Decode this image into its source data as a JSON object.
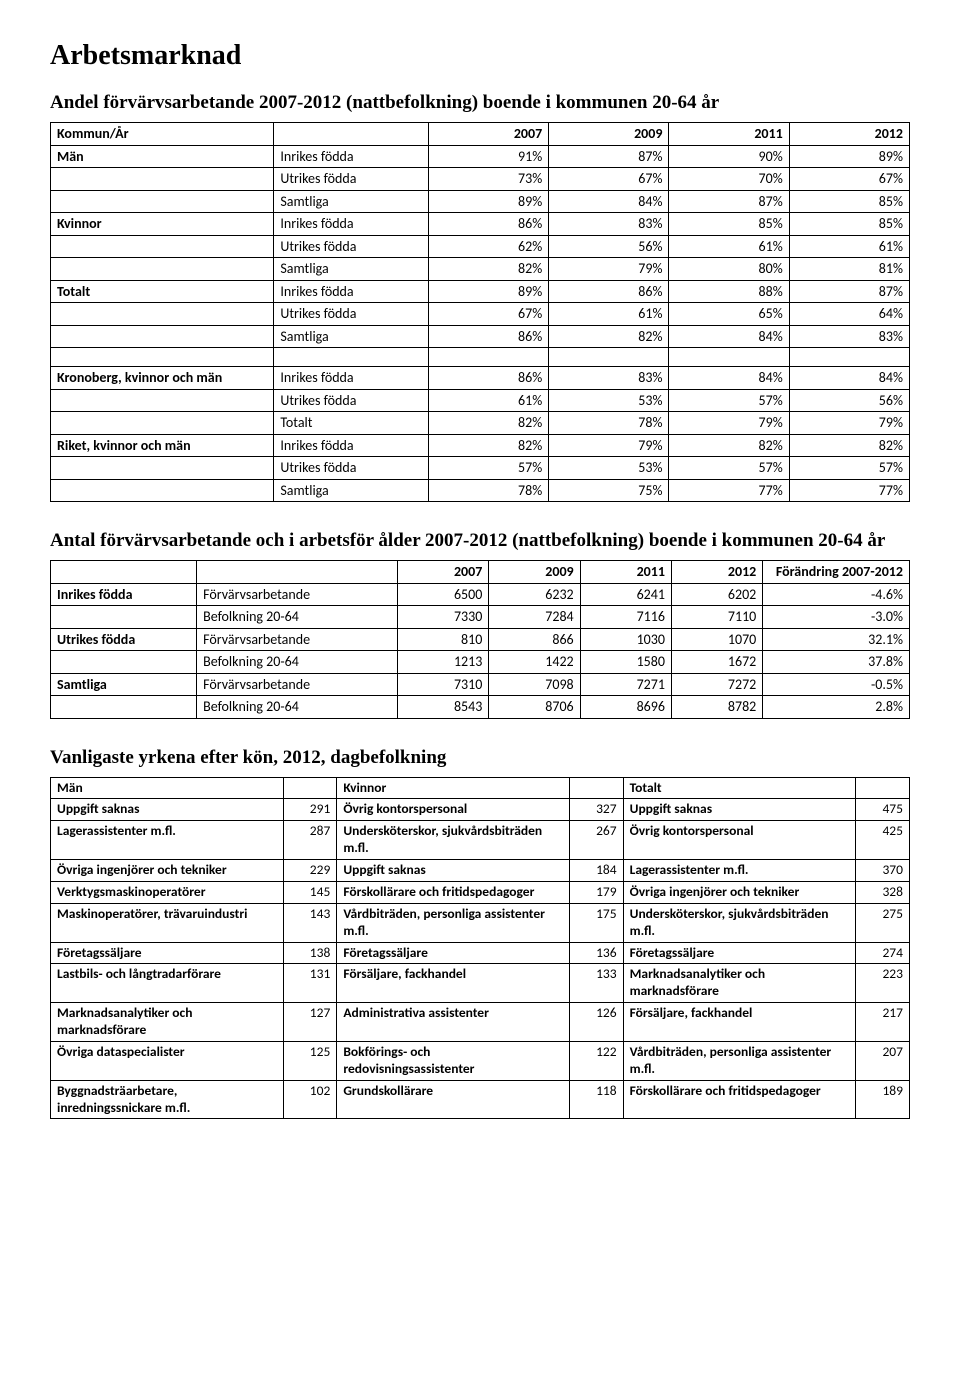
{
  "page": {
    "title": "Arbetsmarknad",
    "h2_table1": "Andel förvärvsarbetande 2007-2012 (nattbefolkning) boende i kommunen 20-64 år",
    "h2_table2": "Antal förvärvsarbetande och i arbetsför ålder 2007-2012 (nattbefolkning) boende i kommunen 20-64 år",
    "h2_table3": "Vanligaste yrkena efter kön, 2012, dagbefolkning"
  },
  "t1": {
    "header": [
      "Kommun/År",
      "",
      "2007",
      "2009",
      "2011",
      "2012"
    ],
    "groups": [
      {
        "label": "Män",
        "rows": [
          {
            "k": "Inrikes födda",
            "v": [
              "91%",
              "87%",
              "90%",
              "89%"
            ]
          },
          {
            "k": "Utrikes födda",
            "v": [
              "73%",
              "67%",
              "70%",
              "67%"
            ]
          },
          {
            "k": "Samtliga",
            "v": [
              "89%",
              "84%",
              "87%",
              "85%"
            ]
          }
        ]
      },
      {
        "label": "Kvinnor",
        "rows": [
          {
            "k": "Inrikes födda",
            "v": [
              "86%",
              "83%",
              "85%",
              "85%"
            ]
          },
          {
            "k": "Utrikes födda",
            "v": [
              "62%",
              "56%",
              "61%",
              "61%"
            ]
          },
          {
            "k": "Samtliga",
            "v": [
              "82%",
              "79%",
              "80%",
              "81%"
            ]
          }
        ]
      },
      {
        "label": "Totalt",
        "rows": [
          {
            "k": "Inrikes födda",
            "v": [
              "89%",
              "86%",
              "88%",
              "87%"
            ]
          },
          {
            "k": "Utrikes födda",
            "v": [
              "67%",
              "61%",
              "65%",
              "64%"
            ]
          },
          {
            "k": "Samtliga",
            "v": [
              "86%",
              "82%",
              "84%",
              "83%"
            ]
          }
        ]
      }
    ],
    "extra": [
      {
        "label": "Kronoberg, kvinnor och män",
        "rows": [
          {
            "k": "Inrikes födda",
            "v": [
              "86%",
              "83%",
              "84%",
              "84%"
            ]
          },
          {
            "k": "Utrikes födda",
            "v": [
              "61%",
              "53%",
              "57%",
              "56%"
            ]
          },
          {
            "k": "Totalt",
            "v": [
              "82%",
              "78%",
              "79%",
              "79%"
            ]
          }
        ]
      },
      {
        "label": "Riket, kvinnor och män",
        "rows": [
          {
            "k": "Inrikes födda",
            "v": [
              "82%",
              "79%",
              "82%",
              "82%"
            ]
          },
          {
            "k": "Utrikes födda",
            "v": [
              "57%",
              "53%",
              "57%",
              "57%"
            ]
          },
          {
            "k": "Samtliga",
            "v": [
              "78%",
              "75%",
              "77%",
              "77%"
            ]
          }
        ]
      }
    ]
  },
  "t2": {
    "header": [
      "",
      "",
      "2007",
      "2009",
      "2011",
      "2012",
      "Förändring 2007-2012"
    ],
    "groups": [
      {
        "label": "Inrikes födda",
        "rows": [
          {
            "k": "Förvärvsarbetande",
            "v": [
              "6500",
              "6232",
              "6241",
              "6202",
              "-4.6%"
            ]
          },
          {
            "k": "Befolkning 20-64",
            "v": [
              "7330",
              "7284",
              "7116",
              "7110",
              "-3.0%"
            ]
          }
        ]
      },
      {
        "label": "Utrikes födda",
        "rows": [
          {
            "k": "Förvärvsarbetande",
            "v": [
              "810",
              "866",
              "1030",
              "1070",
              "32.1%"
            ]
          },
          {
            "k": "Befolkning 20-64",
            "v": [
              "1213",
              "1422",
              "1580",
              "1672",
              "37.8%"
            ]
          }
        ]
      },
      {
        "label": "Samtliga",
        "rows": [
          {
            "k": "Förvärvsarbetande",
            "v": [
              "7310",
              "7098",
              "7271",
              "7272",
              "-0.5%"
            ]
          },
          {
            "k": "Befolkning 20-64",
            "v": [
              "8543",
              "8706",
              "8696",
              "8782",
              "2.8%"
            ]
          }
        ]
      }
    ]
  },
  "t3": {
    "header": [
      "Män",
      "",
      "Kvinnor",
      "",
      "Totalt",
      ""
    ],
    "rows": [
      [
        {
          "t": "Uppgift saknas",
          "n": "291"
        },
        {
          "t": "Övrig kontorspersonal",
          "n": "327"
        },
        {
          "t": "Uppgift saknas",
          "n": "475"
        }
      ],
      [
        {
          "t": "Lagerassistenter m.fl.",
          "n": "287"
        },
        {
          "t": "Undersköterskor, sjukvårdsbiträden m.fl.",
          "n": "267"
        },
        {
          "t": "Övrig kontorspersonal",
          "n": "425"
        }
      ],
      [
        {
          "t": "Övriga ingenjörer och tekniker",
          "n": "229"
        },
        {
          "t": "Uppgift saknas",
          "n": "184"
        },
        {
          "t": "Lagerassistenter m.fl.",
          "n": "370"
        }
      ],
      [
        {
          "t": "Verktygsmaskinoperatörer",
          "n": "145"
        },
        {
          "t": "Förskollärare och fritidspedagoger",
          "n": "179"
        },
        {
          "t": "Övriga ingenjörer och tekniker",
          "n": "328"
        }
      ],
      [
        {
          "t": "Maskinoperatörer, trävaruindustri",
          "n": "143"
        },
        {
          "t": "Vårdbiträden, personliga assistenter m.fl.",
          "n": "175"
        },
        {
          "t": "Undersköterskor, sjukvårdsbiträden m.fl.",
          "n": "275"
        }
      ],
      [
        {
          "t": "Företagssäljare",
          "n": "138"
        },
        {
          "t": "Företagssäljare",
          "n": "136"
        },
        {
          "t": "Företagssäljare",
          "n": "274"
        }
      ],
      [
        {
          "t": "Lastbils- och långtradarförare",
          "n": "131"
        },
        {
          "t": "Försäljare, fackhandel",
          "n": "133"
        },
        {
          "t": "Marknadsanalytiker och marknadsförare",
          "n": "223"
        }
      ],
      [
        {
          "t": "Marknadsanalytiker och marknadsförare",
          "n": "127"
        },
        {
          "t": "Administrativa assistenter",
          "n": "126"
        },
        {
          "t": "Försäljare, fackhandel",
          "n": "217"
        }
      ],
      [
        {
          "t": "Övriga dataspecialister",
          "n": "125"
        },
        {
          "t": "Bokförings- och redovisningsassistenter",
          "n": "122"
        },
        {
          "t": "Vårdbiträden, personliga assistenter m.fl.",
          "n": "207"
        }
      ],
      [
        {
          "t": "Byggnadsträarbetare, inredningssnickare m.fl.",
          "n": "102"
        },
        {
          "t": "Grundskollärare",
          "n": "118"
        },
        {
          "t": "Förskollärare och fritidspedagoger",
          "n": "189"
        }
      ]
    ]
  }
}
